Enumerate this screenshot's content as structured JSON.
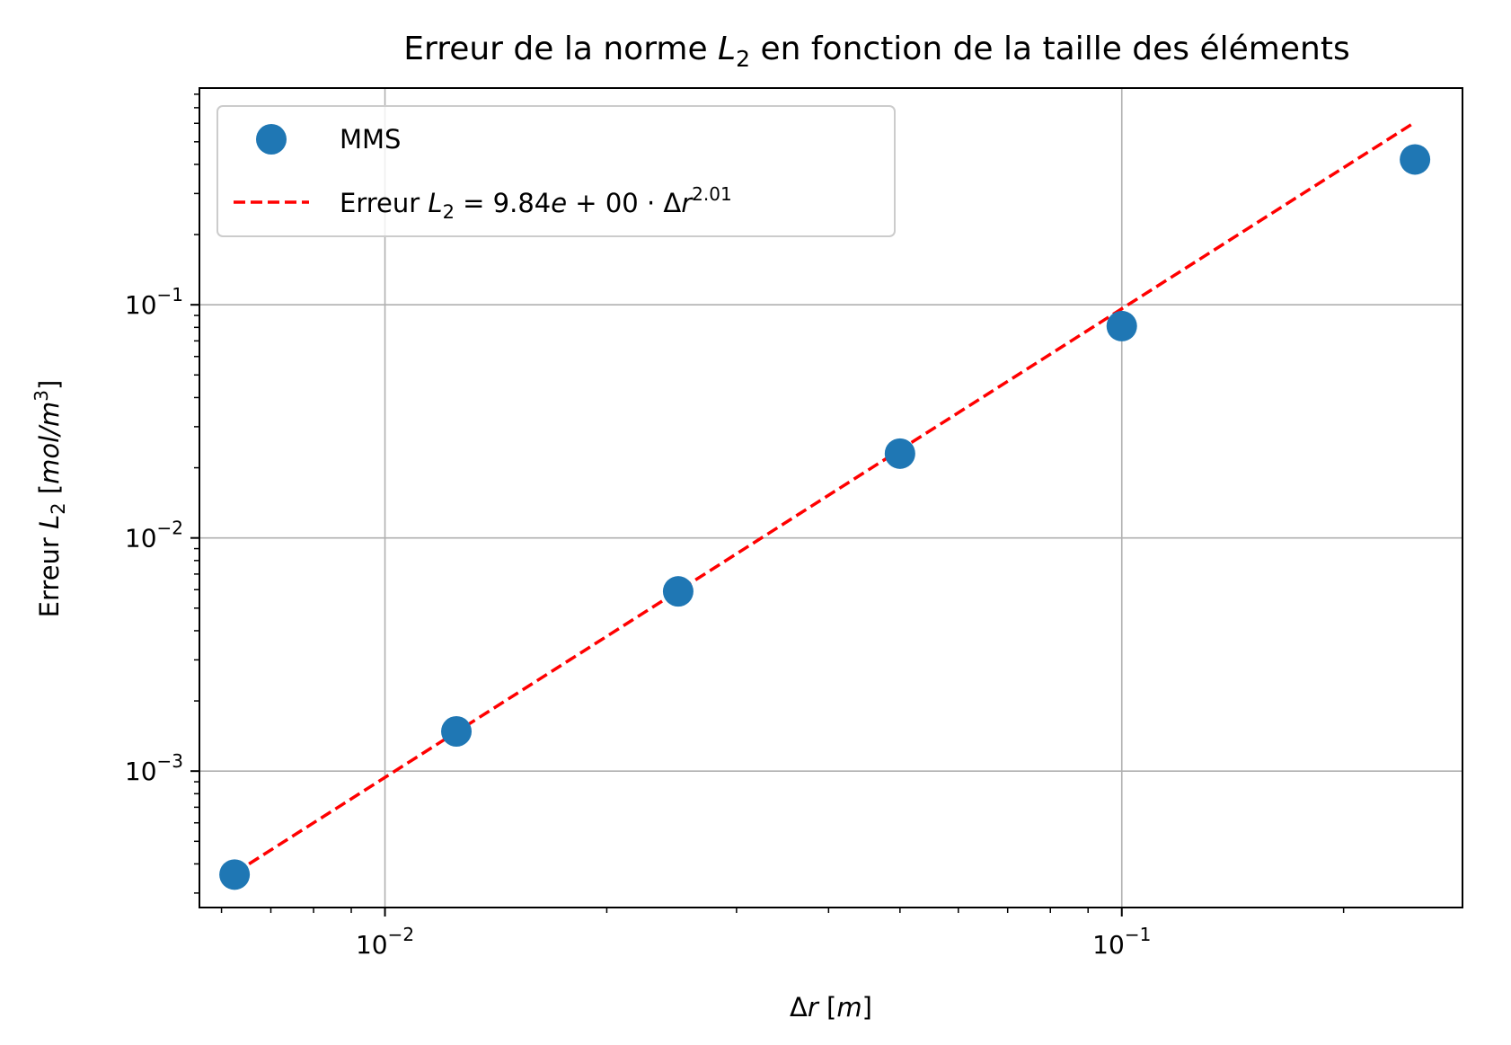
{
  "chart_data": {
    "type": "scatter",
    "title": {
      "prefix": "Erreur de la norme ",
      "var": "L",
      "sub": "2",
      "suffix": " en fonction de la taille des éléments"
    },
    "xlabel": {
      "delta": "Δ",
      "var": "r",
      "unit_open": " [",
      "unit": "m",
      "unit_close": "]"
    },
    "ylabel": {
      "prefix": "Erreur ",
      "var": "L",
      "sub": "2",
      "unit_open": " [",
      "unit": "mol/m",
      "unit_sup": "3",
      "unit_close": "]"
    },
    "x_scale": "log",
    "y_scale": "log",
    "xlim": [
      0.0056,
      0.29
    ],
    "ylim": [
      0.00026,
      0.85
    ],
    "x_ticks": [
      {
        "value": 0.01,
        "base": "10",
        "exp": "−2"
      },
      {
        "value": 0.1,
        "base": "10",
        "exp": "−1"
      }
    ],
    "y_ticks": [
      {
        "value": 0.001,
        "base": "10",
        "exp": "−3"
      },
      {
        "value": 0.01,
        "base": "10",
        "exp": "−2"
      },
      {
        "value": 0.1,
        "base": "10",
        "exp": "−1"
      }
    ],
    "grid": true,
    "legend_position": "upper-left",
    "series": [
      {
        "name": "MMS",
        "marker": "circle",
        "color": "#1f77b4",
        "x": [
          0.00625,
          0.0125,
          0.025,
          0.05,
          0.1,
          0.25
        ],
        "y": [
          0.00036,
          0.00148,
          0.0059,
          0.023,
          0.081,
          0.42
        ]
      },
      {
        "name": {
          "prefix": "Erreur ",
          "var": "L",
          "sub": "2",
          "eq": " = 9.84",
          "e": "e",
          "rest": " + 00 · Δ",
          "r": "r",
          "exp": "2.01"
        },
        "line_style": "dashed",
        "color": "#ff0000",
        "fit": {
          "coefficient": 9.84,
          "exponent": 2.01
        },
        "x": [
          0.00625,
          0.25
        ]
      }
    ]
  }
}
